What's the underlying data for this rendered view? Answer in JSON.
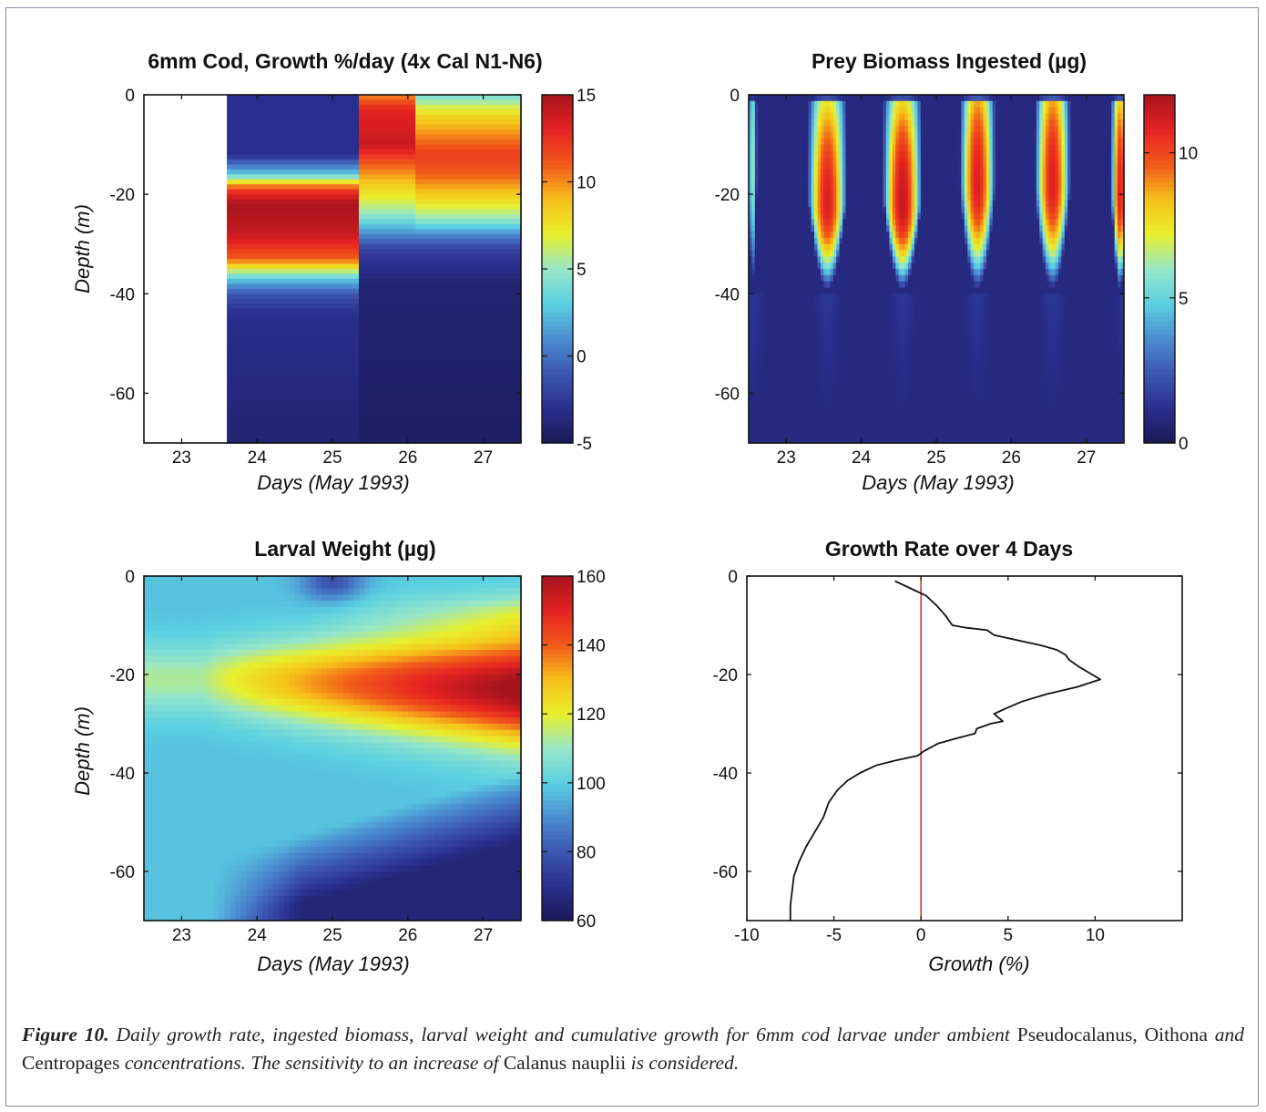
{
  "figure": {
    "caption_label": "Figure 10.",
    "caption_parts": [
      {
        "text": " Daily growth rate, ingested biomass, larval weight and cumulative growth for 6mm cod larvae under ambient ",
        "italic": true
      },
      {
        "text": "Pseudocalanus, Oithona ",
        "italic": false
      },
      {
        "text": "and ",
        "italic": true
      },
      {
        "text": "Centropages ",
        "italic": false
      },
      {
        "text": "concentrations. The sensitivity to an increase of ",
        "italic": true
      },
      {
        "text": "Calanus ",
        "italic": false
      },
      {
        "text": "nauplii ",
        "italic": false
      },
      {
        "text": "is considered.",
        "italic": true
      }
    ]
  },
  "colors": {
    "colormap": [
      "#1a1a58",
      "#2a2e8c",
      "#3c56b0",
      "#4a8cd0",
      "#5ad0e2",
      "#96e6c8",
      "#e8f02c",
      "#f6c01a",
      "#f25a1a",
      "#e62222",
      "#a8141e"
    ],
    "growth_line": "#111111",
    "zero_line": "#d03a2a"
  },
  "chart_data": [
    {
      "type": "heatmap",
      "title": "6mm Cod, Growth %/day (4x Cal N1-N6)",
      "xlabel": "Days (May 1993)",
      "ylabel": "Depth (m)",
      "xlim": [
        22.5,
        27.5
      ],
      "ylim": [
        -70,
        0
      ],
      "xticks": [
        "23",
        "24",
        "25",
        "26",
        "27"
      ],
      "yticks": [
        "0",
        "-20",
        "-40",
        "-60"
      ],
      "data_start_day": 23.6,
      "colorbar": {
        "min": -5,
        "max": 15,
        "ticks": [
          "15",
          "10",
          "5",
          "0",
          "-5"
        ]
      },
      "segments": [
        {
          "from": 23.6,
          "to": 25.35,
          "profile": [
            [
              0,
              -3
            ],
            [
              -12,
              -3
            ],
            [
              -16,
              3
            ],
            [
              -19,
              12
            ],
            [
              -22,
              15
            ],
            [
              -28,
              14
            ],
            [
              -33,
              11
            ],
            [
              -37,
              3
            ],
            [
              -40,
              -1
            ],
            [
              -44,
              -3
            ],
            [
              -70,
              -4
            ]
          ]
        },
        {
          "from": 25.35,
          "to": 26.1,
          "profile": [
            [
              0,
              10
            ],
            [
              -3,
              13
            ],
            [
              -10,
              14
            ],
            [
              -14,
              11
            ],
            [
              -19,
              8
            ],
            [
              -24,
              5
            ],
            [
              -28,
              1
            ],
            [
              -31,
              -2
            ],
            [
              -38,
              -4
            ],
            [
              -70,
              -4.5
            ]
          ]
        },
        {
          "from": 26.1,
          "to": 27.5,
          "profile": [
            [
              0,
              4
            ],
            [
              -4,
              8
            ],
            [
              -8,
              10
            ],
            [
              -12,
              12
            ],
            [
              -16,
              11
            ],
            [
              -21,
              8
            ],
            [
              -25,
              5
            ],
            [
              -28,
              1
            ],
            [
              -31,
              -2
            ],
            [
              -38,
              -4
            ],
            [
              -70,
              -4.5
            ]
          ]
        }
      ]
    },
    {
      "type": "heatmap",
      "title": "Prey Biomass Ingested (µg)",
      "xlabel": "Days (May 1993)",
      "ylabel": "",
      "xlim": [
        22.5,
        27.5
      ],
      "ylim": [
        -70,
        0
      ],
      "xticks": [
        "23",
        "24",
        "25",
        "26",
        "27"
      ],
      "yticks": [
        "0",
        "-20",
        "-40",
        "-60"
      ],
      "colorbar": {
        "min": 0,
        "max": 12,
        "ticks": [
          "10",
          "5",
          "0"
        ]
      },
      "daytime_windows": [
        {
          "center": 22.55,
          "width": 0.13,
          "peak": 6,
          "peak_depth": -15
        },
        {
          "center": 23.55,
          "width": 0.55,
          "peak": 11,
          "peak_depth": -22
        },
        {
          "center": 24.55,
          "width": 0.55,
          "peak": 11.5,
          "peak_depth": -22
        },
        {
          "center": 25.55,
          "width": 0.5,
          "peak": 11,
          "peak_depth": -18
        },
        {
          "center": 26.55,
          "width": 0.5,
          "peak": 11,
          "peak_depth": -18
        },
        {
          "center": 27.45,
          "width": 0.25,
          "peak": 11,
          "peak_depth": -20
        }
      ]
    },
    {
      "type": "heatmap",
      "title": "Larval Weight (µg)",
      "xlabel": "Days (May 1993)",
      "ylabel": "Depth (m)",
      "xlim": [
        22.5,
        27.5
      ],
      "ylim": [
        -70,
        0
      ],
      "xticks": [
        "23",
        "24",
        "25",
        "26",
        "27"
      ],
      "yticks": [
        "0",
        "-20",
        "-40",
        "-60"
      ],
      "colorbar": {
        "min": 60,
        "max": 160,
        "ticks": [
          "160",
          "140",
          "120",
          "100",
          "80",
          "60"
        ]
      },
      "base_weight": 98,
      "max_weight": 160,
      "min_weight": 62
    },
    {
      "type": "line",
      "title": "Growth Rate over 4 Days",
      "xlabel": "Growth (%)",
      "ylabel": "",
      "xlim": [
        -10,
        15
      ],
      "ylim": [
        -70,
        0
      ],
      "xticks": [
        "-10",
        "-5",
        "0",
        "5",
        "10"
      ],
      "yticks": [
        "0",
        "-20",
        "-40",
        "-60"
      ],
      "series": [
        {
          "points": [
            [
              -1.5,
              -1
            ],
            [
              -0.6,
              -2.5
            ],
            [
              0.3,
              -4
            ],
            [
              0.9,
              -6
            ],
            [
              1.4,
              -8
            ],
            [
              1.8,
              -10
            ],
            [
              2.6,
              -10.5
            ],
            [
              3.8,
              -11
            ],
            [
              4.2,
              -12
            ],
            [
              5.5,
              -13
            ],
            [
              6.8,
              -14
            ],
            [
              7.8,
              -15
            ],
            [
              8.3,
              -16
            ],
            [
              8.5,
              -17
            ],
            [
              9.1,
              -18.5
            ],
            [
              10.3,
              -21
            ],
            [
              9.0,
              -22.5
            ],
            [
              7.2,
              -24
            ],
            [
              5.8,
              -25.5
            ],
            [
              4.8,
              -27
            ],
            [
              4.2,
              -28
            ],
            [
              4.7,
              -29.5
            ],
            [
              4.0,
              -30
            ],
            [
              3.2,
              -31
            ],
            [
              3.1,
              -32
            ],
            [
              2.0,
              -33
            ],
            [
              1.0,
              -34
            ],
            [
              0.2,
              -35.5
            ],
            [
              -0.2,
              -36.5
            ],
            [
              -1.5,
              -37.5
            ],
            [
              -2.6,
              -38.5
            ],
            [
              -3.5,
              -40
            ],
            [
              -4.2,
              -41.5
            ],
            [
              -4.8,
              -43.5
            ],
            [
              -5.3,
              -46
            ],
            [
              -5.6,
              -49
            ],
            [
              -6.1,
              -52
            ],
            [
              -6.6,
              -55
            ],
            [
              -7.0,
              -58
            ],
            [
              -7.3,
              -61
            ],
            [
              -7.4,
              -64
            ],
            [
              -7.5,
              -67
            ],
            [
              -7.5,
              -70
            ]
          ]
        }
      ]
    }
  ]
}
